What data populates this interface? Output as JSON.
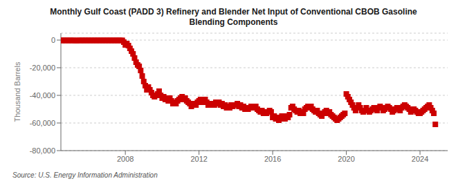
{
  "chart_data": {
    "type": "scatter",
    "title": "Monthly Gulf Coast (PADD 3) Refinery and Blender Net Input of Conventional CBOB Gasoline\nBlending Components",
    "y_label": "Thousand Barrels",
    "annotations": [
      "Source: U.S. Energy Information Administration"
    ],
    "color": "#cc0000",
    "marker": "square",
    "grid": true,
    "xlim": [
      2004.5,
      2025.5
    ],
    "xticks": [
      2008,
      2012,
      2016,
      2020,
      2024
    ],
    "ylim": [
      -80000,
      5000
    ],
    "yticks": [
      0,
      {
        "value": -20000,
        "label": "-20,000"
      },
      {
        "value": -40000,
        "label": "-40,000"
      },
      {
        "value": -60000,
        "label": "-60,000"
      },
      {
        "value": -80000,
        "label": "-80,000"
      }
    ],
    "x": [
      2004.5,
      2004.583,
      2004.667,
      2004.75,
      2004.833,
      2004.917,
      2005.0,
      2005.083,
      2005.167,
      2005.25,
      2005.333,
      2005.417,
      2005.5,
      2005.583,
      2005.667,
      2005.75,
      2005.833,
      2005.917,
      2006.0,
      2006.083,
      2006.167,
      2006.25,
      2006.333,
      2006.417,
      2006.5,
      2006.583,
      2006.667,
      2006.75,
      2006.833,
      2006.917,
      2007.0,
      2007.083,
      2007.167,
      2007.25,
      2007.333,
      2007.417,
      2007.5,
      2007.583,
      2007.667,
      2007.75,
      2007.833,
      2007.917,
      2008.0,
      2008.083,
      2008.167,
      2008.25,
      2008.333,
      2008.417,
      2008.5,
      2008.583,
      2008.667,
      2008.75,
      2008.833,
      2008.917,
      2009.0,
      2009.083,
      2009.167,
      2009.25,
      2009.333,
      2009.417,
      2009.5,
      2009.583,
      2009.667,
      2009.75,
      2009.833,
      2009.917,
      2010.0,
      2010.083,
      2010.167,
      2010.25,
      2010.333,
      2010.417,
      2010.5,
      2010.583,
      2010.667,
      2010.75,
      2010.833,
      2010.917,
      2011.0,
      2011.083,
      2011.167,
      2011.25,
      2011.333,
      2011.417,
      2011.5,
      2011.583,
      2011.667,
      2011.75,
      2011.833,
      2011.917,
      2012.0,
      2012.083,
      2012.167,
      2012.25,
      2012.333,
      2012.417,
      2012.5,
      2012.583,
      2012.667,
      2012.75,
      2012.833,
      2012.917,
      2013.0,
      2013.083,
      2013.167,
      2013.25,
      2013.333,
      2013.417,
      2013.5,
      2013.583,
      2013.667,
      2013.75,
      2013.833,
      2013.917,
      2014.0,
      2014.083,
      2014.167,
      2014.25,
      2014.333,
      2014.417,
      2014.5,
      2014.583,
      2014.667,
      2014.75,
      2014.833,
      2014.917,
      2015.0,
      2015.083,
      2015.167,
      2015.25,
      2015.333,
      2015.417,
      2015.5,
      2015.583,
      2015.667,
      2015.75,
      2015.833,
      2015.917,
      2016.0,
      2016.083,
      2016.167,
      2016.25,
      2016.333,
      2016.417,
      2016.5,
      2016.583,
      2016.667,
      2016.75,
      2016.833,
      2016.917,
      2017.0,
      2017.083,
      2017.167,
      2017.25,
      2017.333,
      2017.417,
      2017.5,
      2017.583,
      2017.667,
      2017.75,
      2017.833,
      2017.917,
      2018.0,
      2018.083,
      2018.167,
      2018.25,
      2018.333,
      2018.417,
      2018.5,
      2018.583,
      2018.667,
      2018.75,
      2018.833,
      2018.917,
      2019.0,
      2019.083,
      2019.167,
      2019.25,
      2019.333,
      2019.417,
      2019.5,
      2019.583,
      2019.667,
      2019.75,
      2019.833,
      2019.917,
      2020.0,
      2020.083,
      2020.167,
      2020.25,
      2020.333,
      2020.417,
      2020.5,
      2020.583,
      2020.667,
      2020.75,
      2020.833,
      2020.917,
      2021.0,
      2021.083,
      2021.167,
      2021.25,
      2021.333,
      2021.417,
      2021.5,
      2021.583,
      2021.667,
      2021.75,
      2021.833,
      2021.917,
      2022.0,
      2022.083,
      2022.167,
      2022.25,
      2022.333,
      2022.417,
      2022.5,
      2022.583,
      2022.667,
      2022.75,
      2022.833,
      2022.917,
      2023.0,
      2023.083,
      2023.167,
      2023.25,
      2023.333,
      2023.417,
      2023.5,
      2023.583,
      2023.667,
      2023.75,
      2023.833,
      2023.917,
      2024.0,
      2024.083,
      2024.167,
      2024.25,
      2024.333,
      2024.417,
      2024.5,
      2024.583,
      2024.667,
      2024.75,
      2024.833
    ],
    "values": [
      -200,
      -300,
      -200,
      -300,
      -200,
      -300,
      -200,
      -300,
      -200,
      -300,
      -400,
      -300,
      -200,
      -300,
      -200,
      -300,
      -200,
      -300,
      -200,
      -300,
      -200,
      -300,
      -200,
      -300,
      -200,
      -300,
      -200,
      -300,
      -200,
      -300,
      -200,
      -300,
      -200,
      -300,
      -200,
      -300,
      -200,
      -300,
      -200,
      -300,
      -200,
      -1500,
      -3500,
      -2500,
      -4000,
      -6000,
      -8000,
      -10000,
      -13000,
      -16000,
      -18000,
      -19000,
      -22000,
      -26000,
      -30000,
      -33000,
      -36000,
      -34000,
      -36000,
      -38000,
      -40000,
      -41000,
      -40000,
      -39000,
      -37000,
      -40000,
      -42000,
      -41000,
      -43000,
      -42000,
      -44000,
      -42000,
      -44000,
      -46000,
      -45000,
      -46000,
      -44000,
      -43000,
      -42000,
      -41000,
      -43000,
      -42000,
      -44000,
      -45000,
      -46000,
      -48000,
      -47000,
      -46000,
      -47000,
      -45000,
      -44000,
      -43000,
      -45000,
      -44000,
      -43000,
      -45000,
      -47000,
      -46000,
      -47000,
      -46000,
      -47000,
      -45000,
      -46000,
      -45000,
      -47000,
      -46000,
      -48000,
      -47000,
      -49000,
      -48000,
      -49000,
      -47000,
      -48000,
      -47000,
      -47000,
      -46000,
      -48000,
      -47000,
      -49000,
      -48000,
      -50000,
      -49000,
      -50000,
      -49000,
      -48000,
      -49000,
      -49000,
      -48000,
      -50000,
      -51000,
      -52000,
      -51000,
      -53000,
      -52000,
      -53000,
      -52000,
      -51000,
      -52000,
      -56000,
      -55000,
      -57000,
      -56000,
      -58000,
      -57000,
      -55000,
      -56000,
      -57000,
      -55000,
      -56000,
      -54000,
      -49000,
      -48000,
      -50000,
      -51000,
      -52000,
      -51000,
      -53000,
      -52000,
      -53000,
      -50000,
      -49000,
      -48000,
      -49000,
      -48000,
      -50000,
      -51000,
      -52000,
      -51000,
      -53000,
      -54000,
      -55000,
      -53000,
      -52000,
      -51000,
      -53000,
      -52000,
      -54000,
      -55000,
      -56000,
      -57000,
      -58000,
      -57000,
      -56000,
      -55000,
      -54000,
      -53000,
      -39000,
      -41000,
      -43000,
      -45000,
      -47000,
      -49000,
      -51000,
      -49000,
      -47000,
      -49000,
      -51000,
      -52000,
      -51000,
      -49000,
      -51000,
      -52000,
      -51000,
      -50000,
      -49000,
      -50000,
      -51000,
      -49000,
      -48000,
      -49000,
      -51000,
      -50000,
      -49000,
      -48000,
      -49000,
      -50000,
      -52000,
      -51000,
      -50000,
      -49000,
      -50000,
      -51000,
      -49000,
      -48000,
      -47000,
      -48000,
      -49000,
      -50000,
      -52000,
      -51000,
      -50000,
      -51000,
      -52000,
      -53000,
      -53000,
      -52000,
      -51000,
      -50000,
      -49000,
      -48000,
      -47000,
      -49000,
      -51000,
      -53000,
      -61000
    ]
  }
}
